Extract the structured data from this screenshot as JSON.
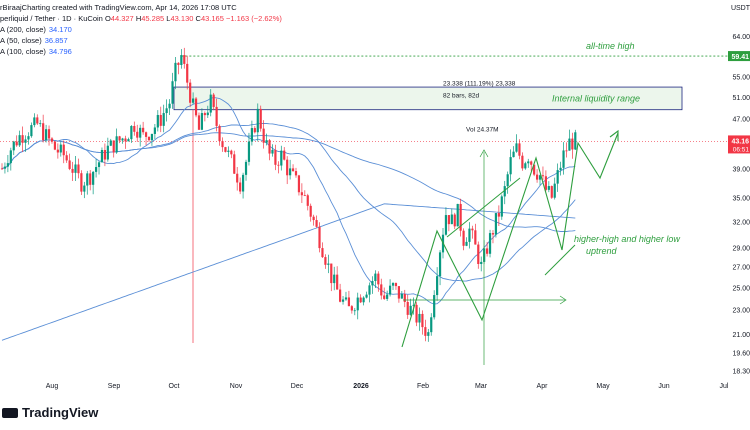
{
  "header": {
    "title": "perliquid / Tether · 1D · KuCoin",
    "credit": "rBiraajCharting created with TradingView.com, Apr 14, 2026 17:08 UTC",
    "o_label": "O",
    "o": "44.327",
    "h_label": "H",
    "h": "45.285",
    "l_label": "L",
    "l": "43.130",
    "c_label": "C",
    "c": "43.165",
    "change": "−1.163 (−2.62%)"
  },
  "moving_averages": [
    {
      "label": "A (200, close)",
      "value": "34.170"
    },
    {
      "label": "A (50, close)",
      "value": "36.857"
    },
    {
      "label": "A (100, close)",
      "value": "34.796"
    }
  ],
  "currency": "USDT",
  "last_price": {
    "value": "43.16",
    "countdown": "06:51"
  },
  "brand": "TradingView",
  "colors": {
    "up": "#089981",
    "down": "#f23645",
    "ma": "#5b8fd6",
    "annotation": "#2e9e3e",
    "box_border": "#1a237e"
  },
  "annotations": {
    "ath": "all-time high",
    "range": "Internal liquidity range",
    "trend_line1": "higher-high and higher low",
    "trend_line2": "uptrend",
    "measure1": "23.338 (111.19%) 23,338",
    "measure2": "82 bars, 82d",
    "measure3": "Vol 24.37M",
    "ath_price": "59.41"
  },
  "chart_data": {
    "type": "candlestick",
    "y_axis": {
      "scale": "log",
      "ticks": [
        "64.00",
        "55.00",
        "51.00",
        "47.00",
        "43.16",
        "39.00",
        "35.00",
        "32.00",
        "29.00",
        "27.00",
        "25.00",
        "23.00",
        "21.00",
        "19.60",
        "18.30"
      ],
      "values": [
        64,
        55,
        51,
        47,
        43.16,
        39,
        35,
        32,
        29,
        27,
        25,
        23,
        21,
        19.6,
        18.3
      ]
    },
    "x_axis": {
      "ticks": [
        "Aug",
        "Sep",
        "Oct",
        "Nov",
        "Dec",
        "2026",
        "Feb",
        "Mar",
        "Apr",
        "May",
        "Jun",
        "Jul"
      ]
    },
    "ath_value": 59.41,
    "range_box": {
      "low": 48.6,
      "high": 52.9
    },
    "close_path": [
      [
        0,
        39
      ],
      [
        3,
        42
      ],
      [
        6,
        44
      ],
      [
        9,
        45
      ],
      [
        12,
        46
      ],
      [
        15,
        44
      ],
      [
        18,
        42
      ],
      [
        21,
        41
      ],
      [
        24,
        39
      ],
      [
        27,
        37
      ],
      [
        30,
        38
      ],
      [
        33,
        40
      ],
      [
        36,
        42
      ],
      [
        39,
        43
      ],
      [
        42,
        44
      ],
      [
        45,
        46
      ],
      [
        48,
        44
      ],
      [
        51,
        45
      ],
      [
        54,
        47
      ],
      [
        57,
        50
      ],
      [
        59,
        56
      ],
      [
        61,
        59.4
      ],
      [
        63,
        54
      ],
      [
        65,
        49
      ],
      [
        67,
        45
      ],
      [
        69,
        48
      ],
      [
        71,
        50
      ],
      [
        73,
        46
      ],
      [
        75,
        43
      ],
      [
        77,
        41
      ],
      [
        79,
        39
      ],
      [
        81,
        37
      ],
      [
        83,
        40
      ],
      [
        85,
        44
      ],
      [
        87,
        48
      ],
      [
        89,
        44
      ],
      [
        91,
        41
      ],
      [
        93,
        40
      ],
      [
        95,
        41
      ],
      [
        97,
        39
      ],
      [
        100,
        37
      ],
      [
        103,
        35
      ],
      [
        106,
        32
      ],
      [
        109,
        29
      ],
      [
        112,
        26
      ],
      [
        115,
        24
      ],
      [
        118,
        23
      ],
      [
        121,
        24
      ],
      [
        124,
        25
      ],
      [
        127,
        26
      ],
      [
        130,
        24
      ],
      [
        133,
        25
      ],
      [
        136,
        24
      ],
      [
        139,
        23
      ],
      [
        142,
        22
      ],
      [
        145,
        21
      ],
      [
        147,
        25
      ],
      [
        149,
        29
      ],
      [
        151,
        33
      ],
      [
        153,
        32
      ],
      [
        155,
        33
      ],
      [
        157,
        30
      ],
      [
        159,
        31
      ],
      [
        161,
        29
      ],
      [
        163,
        27
      ],
      [
        165,
        29
      ],
      [
        167,
        31
      ],
      [
        169,
        33
      ],
      [
        171,
        36
      ],
      [
        173,
        40
      ],
      [
        175,
        42
      ],
      [
        177,
        40
      ],
      [
        179,
        41
      ],
      [
        181,
        39
      ],
      [
        183,
        38
      ],
      [
        185,
        36
      ],
      [
        187,
        35
      ],
      [
        189,
        38
      ],
      [
        191,
        41
      ],
      [
        193,
        43
      ],
      [
        195,
        43.2
      ]
    ]
  }
}
